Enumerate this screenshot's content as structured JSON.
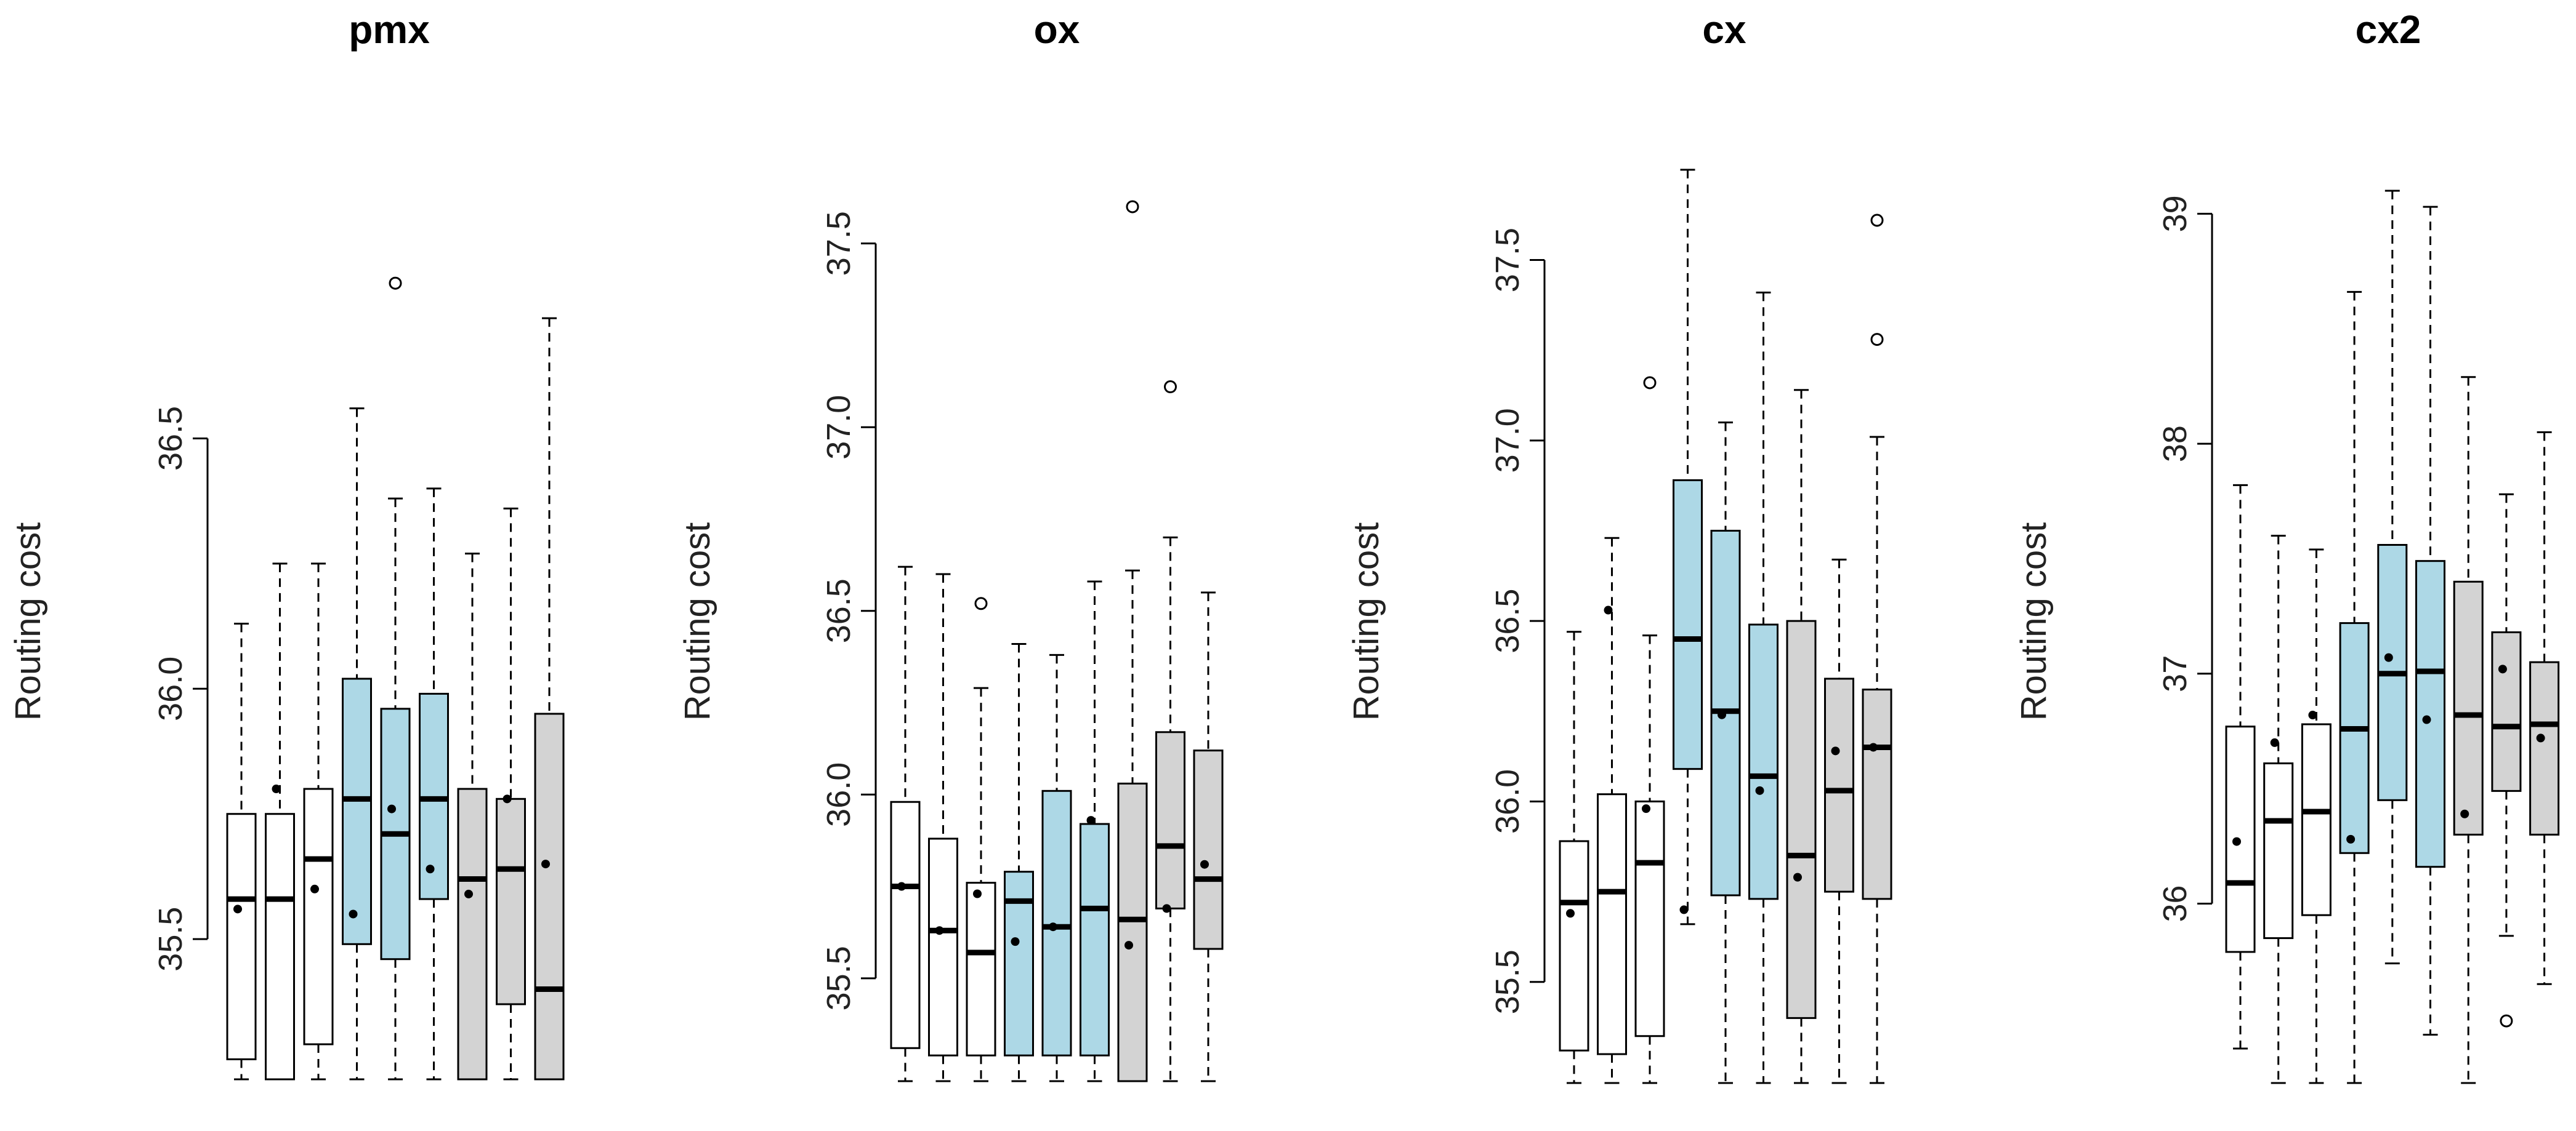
{
  "colors": {
    "white": "#ffffff",
    "blue": "#add8e6",
    "gray": "#d3d3d3",
    "stroke": "#000000"
  },
  "chart_data": [
    {
      "type": "box",
      "title": "pmx",
      "ylabel": "Routing cost",
      "xlabel": "",
      "ylim": [
        35.22,
        36.97
      ],
      "yticks": [
        35.5,
        36.0,
        36.5
      ],
      "ytick_labels": [
        "35.5",
        "36.0",
        "36.5"
      ],
      "boxes": [
        {
          "fill": "white",
          "lo": 35.22,
          "q1": 35.26,
          "med": 35.58,
          "q3": 35.75,
          "hi": 36.13,
          "mean": 35.56,
          "outliers": []
        },
        {
          "fill": "white",
          "lo": 35.22,
          "q1": 35.22,
          "med": 35.58,
          "q3": 35.75,
          "hi": 36.25,
          "mean": 35.8,
          "outliers": []
        },
        {
          "fill": "white",
          "lo": 35.22,
          "q1": 35.29,
          "med": 35.66,
          "q3": 35.8,
          "hi": 36.25,
          "mean": 35.6,
          "outliers": []
        },
        {
          "fill": "blue",
          "lo": 35.22,
          "q1": 35.49,
          "med": 35.78,
          "q3": 36.02,
          "hi": 36.56,
          "mean": 35.55,
          "outliers": []
        },
        {
          "fill": "blue",
          "lo": 35.22,
          "q1": 35.46,
          "med": 35.71,
          "q3": 35.96,
          "hi": 36.38,
          "mean": 35.76,
          "outliers": [
            36.81
          ]
        },
        {
          "fill": "blue",
          "lo": 35.22,
          "q1": 35.58,
          "med": 35.78,
          "q3": 35.99,
          "hi": 36.4,
          "mean": 35.64,
          "outliers": []
        },
        {
          "fill": "gray",
          "lo": 35.22,
          "q1": 35.22,
          "med": 35.62,
          "q3": 35.8,
          "hi": 36.27,
          "mean": 35.59,
          "outliers": []
        },
        {
          "fill": "gray",
          "lo": 35.22,
          "q1": 35.37,
          "med": 35.64,
          "q3": 35.78,
          "hi": 36.36,
          "mean": 35.78,
          "outliers": []
        },
        {
          "fill": "gray",
          "lo": 35.22,
          "q1": 35.22,
          "med": 35.4,
          "q3": 35.95,
          "hi": 36.74,
          "mean": 35.65,
          "outliers": []
        }
      ]
    },
    {
      "type": "box",
      "title": "ox",
      "ylabel": "Routing cost",
      "xlabel": "",
      "ylim": [
        35.22,
        37.61
      ],
      "yticks": [
        35.5,
        36.0,
        36.5,
        37.0,
        37.5
      ],
      "ytick_labels": [
        "35.5",
        "36.0",
        "36.5",
        "37.0",
        "37.5"
      ],
      "boxes": [
        {
          "fill": "white",
          "lo": 35.22,
          "q1": 35.31,
          "med": 35.75,
          "q3": 35.98,
          "hi": 36.62,
          "mean": 35.75,
          "outliers": []
        },
        {
          "fill": "white",
          "lo": 35.22,
          "q1": 35.29,
          "med": 35.63,
          "q3": 35.88,
          "hi": 36.6,
          "mean": 35.63,
          "outliers": []
        },
        {
          "fill": "white",
          "lo": 35.22,
          "q1": 35.29,
          "med": 35.57,
          "q3": 35.76,
          "hi": 36.29,
          "mean": 35.73,
          "outliers": [
            36.52
          ]
        },
        {
          "fill": "blue",
          "lo": 35.22,
          "q1": 35.29,
          "med": 35.71,
          "q3": 35.79,
          "hi": 36.41,
          "mean": 35.6,
          "outliers": []
        },
        {
          "fill": "blue",
          "lo": 35.22,
          "q1": 35.29,
          "med": 35.64,
          "q3": 36.01,
          "hi": 36.38,
          "mean": 35.64,
          "outliers": []
        },
        {
          "fill": "blue",
          "lo": 35.22,
          "q1": 35.29,
          "med": 35.69,
          "q3": 35.92,
          "hi": 36.58,
          "mean": 35.93,
          "outliers": []
        },
        {
          "fill": "gray",
          "lo": 35.22,
          "q1": 35.22,
          "med": 35.66,
          "q3": 36.03,
          "hi": 36.61,
          "mean": 35.59,
          "outliers": [
            37.6
          ]
        },
        {
          "fill": "gray",
          "lo": 35.22,
          "q1": 35.69,
          "med": 35.86,
          "q3": 36.17,
          "hi": 36.7,
          "mean": 35.69,
          "outliers": [
            37.11
          ]
        },
        {
          "fill": "gray",
          "lo": 35.22,
          "q1": 35.58,
          "med": 35.77,
          "q3": 36.12,
          "hi": 36.55,
          "mean": 35.81,
          "outliers": []
        }
      ]
    },
    {
      "type": "box",
      "title": "cx",
      "ylabel": "Routing cost",
      "xlabel": "",
      "ylim": [
        35.22,
        37.76
      ],
      "yticks": [
        35.5,
        36.0,
        36.5,
        37.0,
        37.5
      ],
      "ytick_labels": [
        "35.5",
        "36.0",
        "36.5",
        "37.0",
        "37.5"
      ],
      "boxes": [
        {
          "fill": "white",
          "lo": 35.22,
          "q1": 35.31,
          "med": 35.72,
          "q3": 35.89,
          "hi": 36.47,
          "mean": 35.69,
          "outliers": []
        },
        {
          "fill": "white",
          "lo": 35.22,
          "q1": 35.3,
          "med": 35.75,
          "q3": 36.02,
          "hi": 36.73,
          "mean": 36.53,
          "outliers": []
        },
        {
          "fill": "white",
          "lo": 35.22,
          "q1": 35.35,
          "med": 35.83,
          "q3": 36.0,
          "hi": 36.46,
          "mean": 35.98,
          "outliers": [
            37.16
          ]
        },
        {
          "fill": "blue",
          "lo": 35.66,
          "q1": 36.09,
          "med": 36.45,
          "q3": 36.89,
          "hi": 37.75,
          "mean": 35.7,
          "outliers": []
        },
        {
          "fill": "blue",
          "lo": 35.22,
          "q1": 35.74,
          "med": 36.25,
          "q3": 36.75,
          "hi": 37.05,
          "mean": 36.24,
          "outliers": []
        },
        {
          "fill": "blue",
          "lo": 35.22,
          "q1": 35.73,
          "med": 36.07,
          "q3": 36.49,
          "hi": 37.41,
          "mean": 36.03,
          "outliers": []
        },
        {
          "fill": "gray",
          "lo": 35.22,
          "q1": 35.4,
          "med": 35.85,
          "q3": 36.5,
          "hi": 37.14,
          "mean": 35.79,
          "outliers": []
        },
        {
          "fill": "gray",
          "lo": 35.22,
          "q1": 35.75,
          "med": 36.03,
          "q3": 36.34,
          "hi": 36.67,
          "mean": 36.14,
          "outliers": []
        },
        {
          "fill": "gray",
          "lo": 35.22,
          "q1": 35.73,
          "med": 36.15,
          "q3": 36.31,
          "hi": 37.01,
          "mean": 36.15,
          "outliers": [
            37.28,
            37.61
          ]
        }
      ]
    },
    {
      "type": "box",
      "title": "cx2",
      "ylabel": "Routing cost",
      "xlabel": "",
      "ylim": [
        35.22,
        39.1
      ],
      "yticks": [
        36,
        37,
        38,
        39
      ],
      "ytick_labels": [
        "36",
        "37",
        "38",
        "39"
      ],
      "boxes": [
        {
          "fill": "white",
          "lo": 35.37,
          "q1": 35.79,
          "med": 36.09,
          "q3": 36.77,
          "hi": 37.82,
          "mean": 36.27,
          "outliers": []
        },
        {
          "fill": "white",
          "lo": 35.22,
          "q1": 35.85,
          "med": 36.36,
          "q3": 36.61,
          "hi": 37.6,
          "mean": 36.7,
          "outliers": []
        },
        {
          "fill": "white",
          "lo": 35.22,
          "q1": 35.95,
          "med": 36.4,
          "q3": 36.78,
          "hi": 37.54,
          "mean": 36.82,
          "outliers": []
        },
        {
          "fill": "blue",
          "lo": 35.22,
          "q1": 36.22,
          "med": 36.76,
          "q3": 37.22,
          "hi": 38.66,
          "mean": 36.28,
          "outliers": []
        },
        {
          "fill": "blue",
          "lo": 35.74,
          "q1": 36.45,
          "med": 37.0,
          "q3": 37.56,
          "hi": 39.1,
          "mean": 37.07,
          "outliers": []
        },
        {
          "fill": "blue",
          "lo": 35.43,
          "q1": 36.16,
          "med": 37.01,
          "q3": 37.49,
          "hi": 39.03,
          "mean": 36.8,
          "outliers": []
        },
        {
          "fill": "gray",
          "lo": 35.22,
          "q1": 36.3,
          "med": 36.82,
          "q3": 37.4,
          "hi": 38.29,
          "mean": 36.39,
          "outliers": []
        },
        {
          "fill": "gray",
          "lo": 35.86,
          "q1": 36.49,
          "med": 36.77,
          "q3": 37.18,
          "hi": 37.78,
          "mean": 37.02,
          "outliers": [
            35.49
          ]
        },
        {
          "fill": "gray",
          "lo": 35.65,
          "q1": 36.3,
          "med": 36.78,
          "q3": 37.05,
          "hi": 38.05,
          "mean": 36.72,
          "outliers": []
        }
      ]
    }
  ]
}
